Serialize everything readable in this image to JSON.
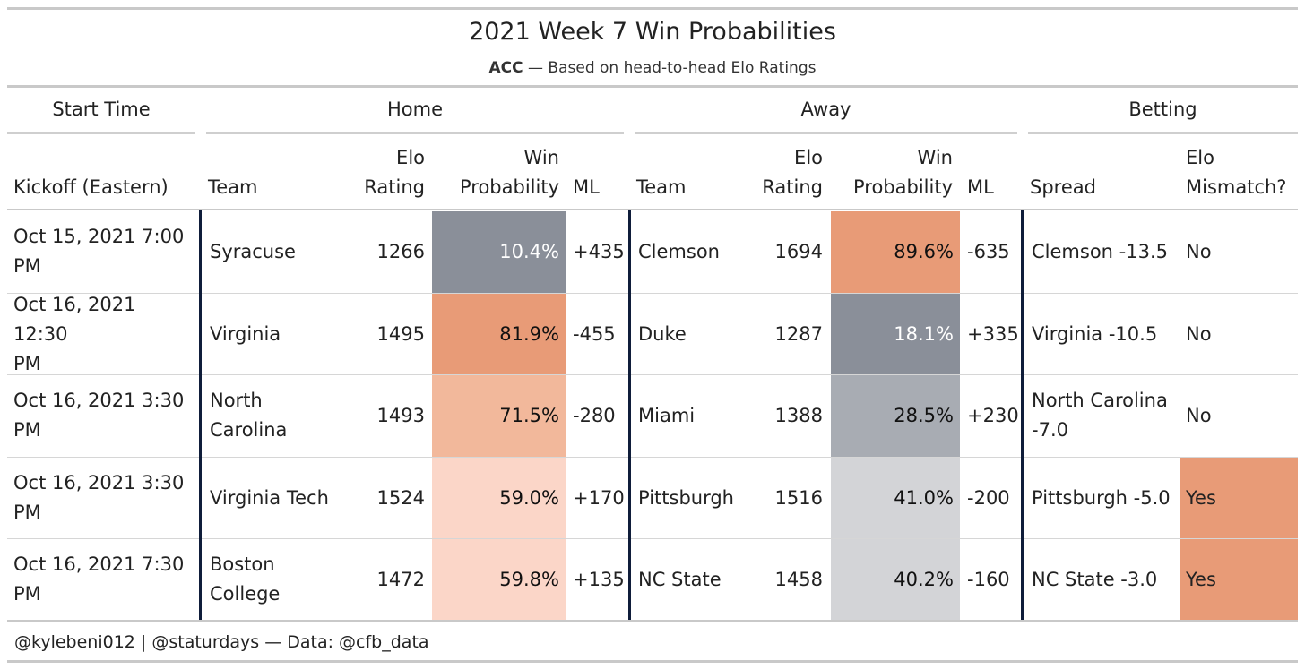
{
  "title": "2021 Week 7 Win Probabilities",
  "subtitle": {
    "bold": "ACC",
    "rest": " — Based on head-to-head Elo Ratings"
  },
  "spanners": {
    "start": "Start Time",
    "home": "Home",
    "away": "Away",
    "betting": "Betting"
  },
  "columns": {
    "kickoff": "Kickoff (Eastern)",
    "home_team": "Team",
    "home_elo": [
      "Elo",
      "Rating"
    ],
    "home_wp": [
      "Win",
      "Probability"
    ],
    "home_ml": "ML",
    "away_team": "Team",
    "away_elo": [
      "Elo",
      "Rating"
    ],
    "away_wp": [
      "Win",
      "Probability"
    ],
    "away_ml": "ML",
    "spread": "Spread",
    "mismatch": [
      "Elo",
      "Mismatch?"
    ]
  },
  "rows": [
    {
      "kickoff": [
        "Oct 15, 2021 7:00",
        "PM"
      ],
      "home_team": [
        "Syracuse"
      ],
      "home_elo": "1266",
      "home_wp": "10.4%",
      "home_wp_value": 0.104,
      "home_ml": "+435",
      "away_team": "Clemson",
      "away_elo": "1694",
      "away_wp": "89.6%",
      "away_wp_value": 0.896,
      "away_ml": "-635",
      "spread": [
        "Clemson -13.5"
      ],
      "mismatch": "No"
    },
    {
      "kickoff": [
        "Oct 16, 2021 12:30",
        "PM"
      ],
      "home_team": [
        "Virginia"
      ],
      "home_elo": "1495",
      "home_wp": "81.9%",
      "home_wp_value": 0.819,
      "home_ml": "-455",
      "away_team": "Duke",
      "away_elo": "1287",
      "away_wp": "18.1%",
      "away_wp_value": 0.181,
      "away_ml": "+335",
      "spread": [
        "Virginia -10.5"
      ],
      "mismatch": "No"
    },
    {
      "kickoff": [
        "Oct 16, 2021 3:30",
        "PM"
      ],
      "home_team": [
        "North",
        "Carolina"
      ],
      "home_elo": "1493",
      "home_wp": "71.5%",
      "home_wp_value": 0.715,
      "home_ml": "-280",
      "away_team": "Miami",
      "away_elo": "1388",
      "away_wp": "28.5%",
      "away_wp_value": 0.285,
      "away_ml": "+230",
      "spread": [
        "North Carolina",
        "-7.0"
      ],
      "mismatch": "No"
    },
    {
      "kickoff": [
        "Oct 16, 2021 3:30",
        "PM"
      ],
      "home_team": [
        "Virginia Tech"
      ],
      "home_elo": "1524",
      "home_wp": "59.0%",
      "home_wp_value": 0.59,
      "home_ml": "+170",
      "away_team": "Pittsburgh",
      "away_elo": "1516",
      "away_wp": "41.0%",
      "away_wp_value": 0.41,
      "away_ml": "-200",
      "spread": [
        "Pittsburgh -5.0"
      ],
      "mismatch": "Yes"
    },
    {
      "kickoff": [
        "Oct 16, 2021 7:30",
        "PM"
      ],
      "home_team": [
        "Boston",
        "College"
      ],
      "home_elo": "1472",
      "home_wp": "59.8%",
      "home_wp_value": 0.598,
      "home_ml": "+135",
      "away_team": "NC State",
      "away_elo": "1458",
      "away_wp": "40.2%",
      "away_wp_value": 0.402,
      "away_ml": "-160",
      "spread": [
        "NC State -3.0"
      ],
      "mismatch": "Yes"
    }
  ],
  "colors": {
    "high_fill": "#e89b77",
    "mid_high_fill": "#f2b89b",
    "low_high_fill": "#fbd6c8",
    "very_low_fill": "#8a8f99",
    "low_fill": "#a8acb3",
    "mid_low_fill": "#d3d4d7",
    "mismatch_yes_fill": "#e89b77",
    "divider": "#0f1d3a"
  },
  "footer": "@kylebeni012 | @staturdays — Data: @cfb_data"
}
